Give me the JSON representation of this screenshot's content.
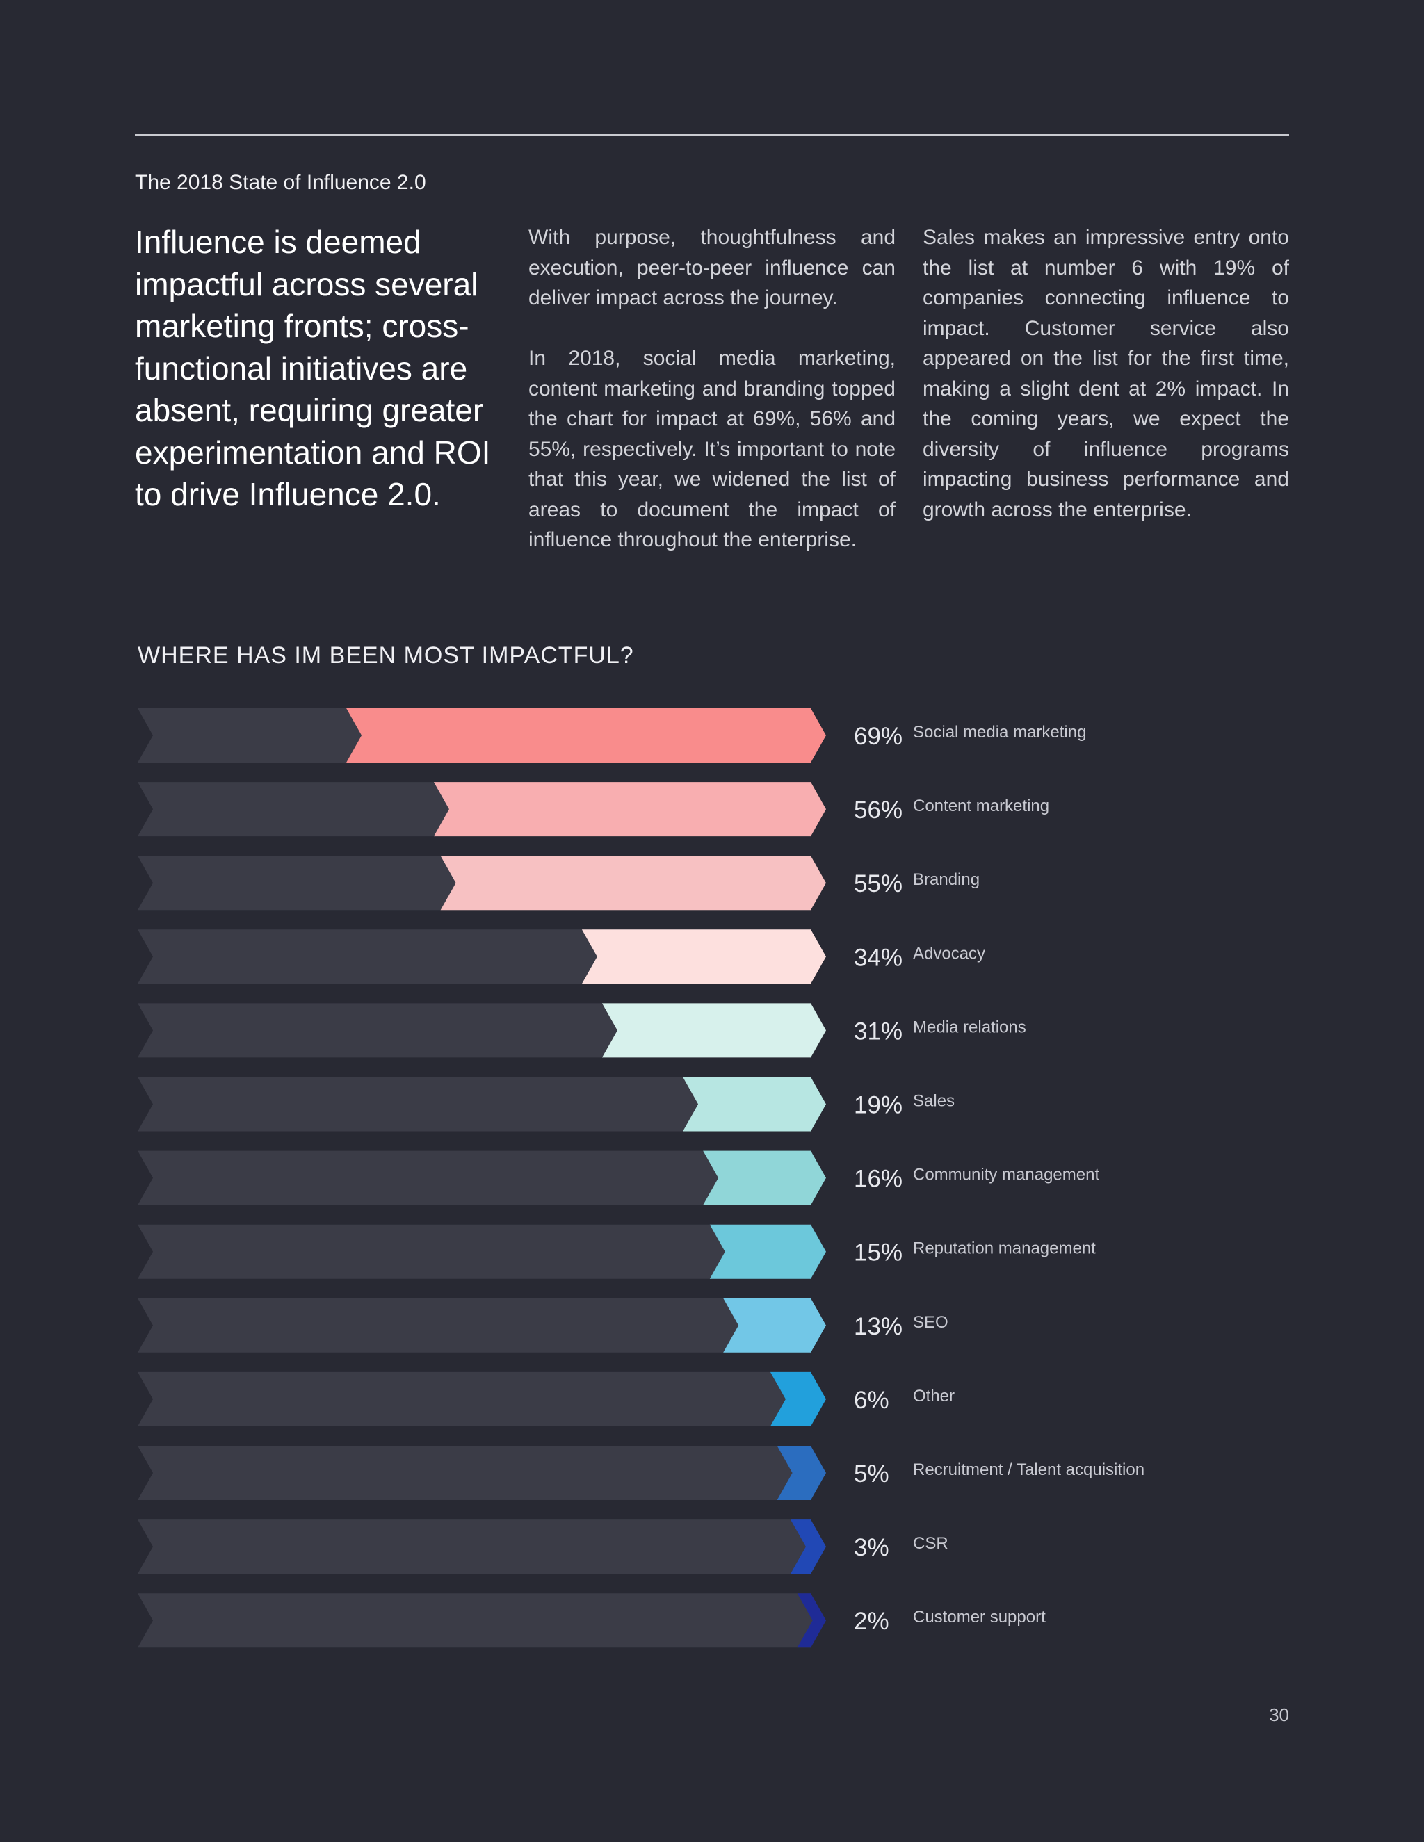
{
  "header": {
    "kicker": "The 2018 State of Influence 2.0"
  },
  "headline": "Influence is deemed impactful across several marketing fronts; cross-functional initiatives are absent, requiring greater experimentation and ROI to drive Influence 2.0.",
  "body": {
    "col1_p1": "With purpose, thoughtfulness and execution, peer-to-peer influence can deliver impact across the journey.",
    "col1_p2": "In 2018, social media marketing, content marketing and branding topped the chart for impact at 69%, 56% and 55%, respectively. It’s important to note that this year, we widened the list of areas to document the impact of influence throughout the enterprise.",
    "col2_p1": "Sales makes an impressive entry onto the list at number 6 with 19% of companies connecting influence to impact. Customer service also appeared on the list for the first time, making a slight dent at 2% impact. In the coming years, we expect the diversity of influence programs impacting business performance and growth across the enterprise."
  },
  "chart_data": {
    "type": "bar",
    "orientation": "horizontal",
    "title": "WHERE HAS IM BEEN MOST IMPACTFUL?",
    "categories": [
      "Social media marketing",
      "Content marketing",
      "Branding",
      "Advocacy",
      "Media relations",
      "Sales",
      "Community management",
      "Reputation management",
      "SEO",
      "Other",
      "Recruitment / Talent acquisition",
      "CSR",
      "Customer support"
    ],
    "values": [
      69,
      56,
      55,
      34,
      31,
      19,
      16,
      15,
      13,
      6,
      5,
      3,
      2
    ],
    "value_labels": [
      "69%",
      "56%",
      "55%",
      "34%",
      "31%",
      "19%",
      "16%",
      "15%",
      "13%",
      "6%",
      "5%",
      "3%",
      "2%"
    ],
    "ylim": [
      0,
      100
    ],
    "colors": [
      "#f98c8c",
      "#f8aeb0",
      "#f7c1c2",
      "#fde0de",
      "#d7f1ec",
      "#b7e6e2",
      "#90d6d8",
      "#6cc8db",
      "#72c7e7",
      "#22a0dc",
      "#2b6dbf",
      "#2148b5",
      "#1f2b96"
    ],
    "track_color": "#3b3c47",
    "grid": false,
    "legend": "none"
  },
  "footer": {
    "page_number": "30"
  }
}
